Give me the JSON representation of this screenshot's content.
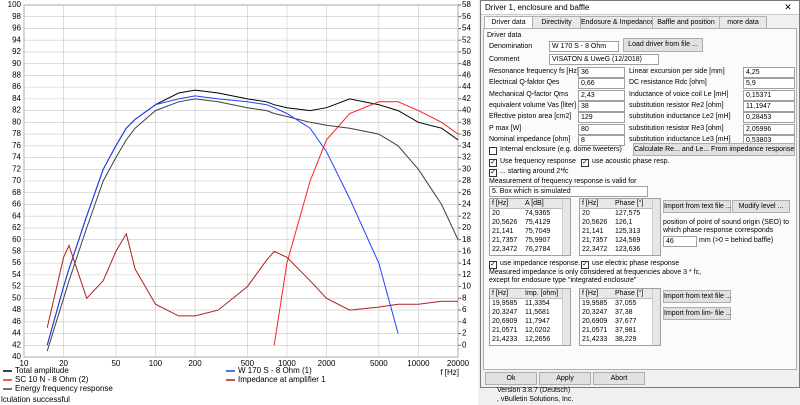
{
  "chart_data": {
    "type": "line",
    "xlabel": "f [Hz]",
    "xscale": "log",
    "grid": true,
    "x": [
      10,
      15,
      20,
      22,
      30,
      40,
      50,
      60,
      70,
      100,
      150,
      200,
      300,
      500,
      700,
      800,
      1000,
      1500,
      2000,
      3000,
      5000,
      7000,
      10000,
      15000,
      20000
    ],
    "xlim": [
      10,
      20000
    ],
    "xticks": [
      10,
      20,
      50,
      100,
      200,
      500,
      1000,
      2000,
      5000,
      10000,
      20000
    ],
    "ylim": [
      40,
      100
    ],
    "yticks": [
      40,
      42,
      44,
      46,
      48,
      50,
      52,
      54,
      56,
      58,
      60,
      62,
      64,
      66,
      68,
      70,
      72,
      74,
      76,
      78,
      80,
      82,
      84,
      86,
      88,
      90,
      92,
      94,
      96,
      98,
      100
    ],
    "y2lim": [
      -2,
      58
    ],
    "y2ticks": [
      0,
      2,
      4,
      6,
      8,
      10,
      12,
      14,
      16,
      18,
      20,
      22,
      24,
      26,
      28,
      30,
      32,
      34,
      36,
      38,
      40,
      42,
      44,
      46,
      48,
      50,
      52,
      54,
      56,
      58
    ],
    "series": [
      {
        "name": "Total amplitude",
        "color": "#000000",
        "values": [
          null,
          42,
          52,
          55,
          64,
          72,
          76,
          79,
          80.5,
          83,
          85,
          85.5,
          85,
          84,
          83.5,
          83,
          82.5,
          82,
          82.5,
          84,
          83,
          82,
          80,
          79,
          77
        ]
      },
      {
        "name": "SC 10 N - 8 Ohm (2)",
        "color": "#ff2020",
        "values": [
          null,
          null,
          null,
          null,
          null,
          null,
          null,
          null,
          null,
          null,
          null,
          null,
          null,
          null,
          null,
          42,
          56,
          70,
          77,
          81.5,
          83.5,
          83.5,
          82,
          80,
          78
        ]
      },
      {
        "name": "Energy frequency response",
        "color": "#404040",
        "values": [
          null,
          41,
          50,
          53,
          62,
          70,
          74,
          77,
          79,
          82,
          83.5,
          84,
          83.5,
          82.5,
          82,
          81.5,
          81,
          80,
          79.5,
          79,
          78,
          76,
          72,
          66,
          60
        ]
      },
      {
        "name": "W 170 S - 8 Ohm (1)",
        "color": "#2040ff",
        "values": [
          null,
          42,
          52,
          55,
          64,
          72,
          76,
          79,
          80.5,
          83,
          84,
          84.5,
          84,
          83.5,
          83,
          82.5,
          81.5,
          79,
          75,
          67,
          56,
          44,
          null,
          null,
          null
        ]
      },
      {
        "name": "Impedance at amplifier 1",
        "color": "#b02020",
        "axis": "y2",
        "values": [
          null,
          3,
          15,
          17,
          8,
          11,
          16,
          19,
          13,
          7,
          5,
          5,
          6,
          10,
          14.5,
          16,
          15,
          11,
          8,
          6,
          6.5,
          7,
          7,
          7.5,
          7.5
        ]
      }
    ]
  },
  "status": "lculation successful",
  "background": [
    "Version 3.8.7 (Deutsch)",
    ", vBulletin Solutions, Inc."
  ],
  "dialog": {
    "title": "Driver 1, enclosure and baffle",
    "tabs": [
      "Driver data",
      "Directivity",
      "Endosure & Impedance",
      "Baffle and position",
      "more data"
    ],
    "group": "Driver data",
    "denomination": {
      "label": "Denomination",
      "value": "W 170 S - 8 Ohm"
    },
    "load_button": "Load driver from file ...",
    "comment": {
      "label": "Comment",
      "value": "VISATON & UweG (12/2018)"
    },
    "params_left": [
      {
        "label": "Resonance frequency fs [Hz]",
        "value": "36"
      },
      {
        "label": "Electrical Q-faktor Qes",
        "value": "0,66"
      },
      {
        "label": "Mechanical Q-factor Qms",
        "value": "2,43"
      },
      {
        "label": "equivalent volume Vas [liter]",
        "value": "38"
      },
      {
        "label": "Effective piston area [cm2]",
        "value": "129"
      },
      {
        "label": "P max [W]",
        "value": "80"
      },
      {
        "label": "Nominal impedance [ohm]",
        "value": "8"
      }
    ],
    "params_right": [
      {
        "label": "Linear excursion per side [mm]",
        "value": "4,25"
      },
      {
        "label": "DC resistance Rdc [ohm]",
        "value": "5,9"
      },
      {
        "label": "Inductance of voice coil Le [mH]",
        "value": "0,15371"
      },
      {
        "label": "substitution resistor Re2 [ohm]",
        "value": "11,1947"
      },
      {
        "label": "substitution inductance Le2 [mH]",
        "value": "0,28453"
      },
      {
        "label": "substitution resistor Re3 [ohm]",
        "value": "2,05996"
      },
      {
        "label": "substitution inductance Le3 [mH]",
        "value": "0,53803"
      }
    ],
    "internal": {
      "label": "Internal enclosure (e.g. dome tweeters)",
      "checked": false
    },
    "calc_button": "Calculate Re... and Le... From impedance response",
    "use_freq": {
      "label": "Use frequency response",
      "checked": true
    },
    "acoustic_phase": {
      "label": "use acoustic phase resp.",
      "checked": true
    },
    "starting": {
      "label": "... starting around 2*fc",
      "checked": true
    },
    "valid_for": "Measurement of frequency response is valid for",
    "dropdown": "5. Box which is simulated",
    "freq_table": {
      "columns": [
        "f [Hz]",
        "A [dB]"
      ],
      "rows": [
        [
          "20",
          "74,9365"
        ],
        [
          "20,5626",
          "75,4129"
        ],
        [
          "21,141",
          "75,7049"
        ],
        [
          "21,7357",
          "75,9907"
        ],
        [
          "22,3472",
          "76,2784"
        ]
      ]
    },
    "freq_phase_table": {
      "columns": [
        "f [Hz]",
        "Phase [°]"
      ],
      "rows": [
        [
          "20",
          "127,575"
        ],
        [
          "20,5626",
          "126,1"
        ],
        [
          "21,141",
          "125,313"
        ],
        [
          "21,7357",
          "124,569"
        ],
        [
          "22,3472",
          "123,636"
        ]
      ]
    },
    "import_text_1": "Import from text file ...",
    "modify_level": "Modify level ...",
    "seo_text": "position of point of sound origin (SEO) to which phase response corresponds",
    "seo_value": "46",
    "seo_unit": "mm (>0 = behind baffle)",
    "use_imp": {
      "label": "use impedance response.",
      "checked": true
    },
    "electric_phase": {
      "label": "use electric phase responsе",
      "checked": true
    },
    "imp_note": "Measured impedance is only considered at frequencies above 3 * fc, except for endosure type \"integrated enclosure\"",
    "imp_table": {
      "columns": [
        "f [Hz]",
        "Imp. [ohm]"
      ],
      "rows": [
        [
          "19,9585",
          "11,3354"
        ],
        [
          "20,3247",
          "11,5681"
        ],
        [
          "20,6909",
          "11,7947"
        ],
        [
          "21,0571",
          "12,0202"
        ],
        [
          "21,4233",
          "12,2656"
        ]
      ]
    },
    "imp_phase_table": {
      "columns": [
        "f [Hz]",
        "Phase [°]"
      ],
      "rows": [
        [
          "19,9585",
          "37,055"
        ],
        [
          "20,3247",
          "37,38"
        ],
        [
          "20,6909",
          "37,677"
        ],
        [
          "21,0571",
          "37,981"
        ],
        [
          "21,4233",
          "38,229"
        ]
      ]
    },
    "import_text_2": "Import from text file ...",
    "import_lim": "Import from lim- file ...",
    "buttons": [
      "Ok",
      "Apply",
      "Abort"
    ]
  }
}
